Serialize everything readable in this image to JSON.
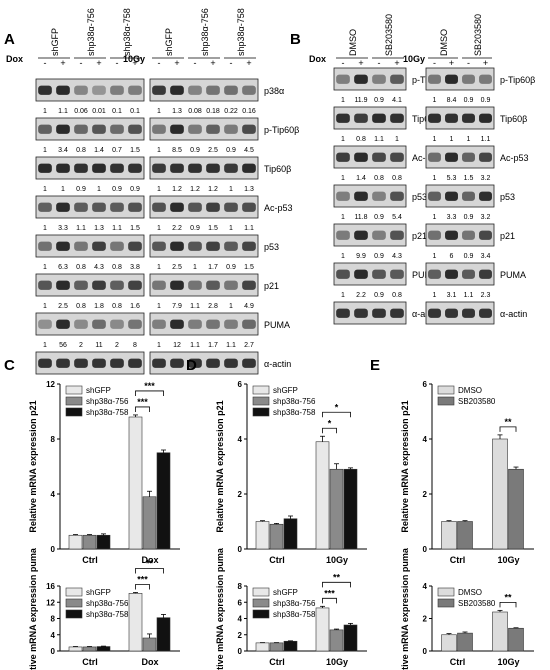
{
  "panelA": {
    "letter": "A",
    "groups": [
      "shGFP",
      "shp38α-756",
      "shp38α-758"
    ],
    "left": {
      "treat": "Dox",
      "signs": [
        "-",
        "+",
        "-",
        "+",
        "-",
        "+"
      ],
      "rows": [
        {
          "label": "p38α",
          "values": [
            "1",
            "1.1",
            "0.06",
            "0.01",
            "0.1",
            "0.1"
          ]
        },
        {
          "label": "p-Tip60β",
          "values": [
            "1",
            "3.4",
            "0.8",
            "1.4",
            "0.7",
            "1.5"
          ]
        },
        {
          "label": "Tip60β",
          "values": [
            "1",
            "1",
            "0.9",
            "1",
            "0.9",
            "0.9"
          ]
        },
        {
          "label": "Ac-p53",
          "values": [
            "1",
            "3.3",
            "1.1",
            "1.3",
            "1.1",
            "1.5"
          ]
        },
        {
          "label": "p53",
          "values": [
            "1",
            "6.3",
            "0.8",
            "4.3",
            "0.8",
            "3.8"
          ]
        },
        {
          "label": "p21",
          "values": [
            "1",
            "2.5",
            "0.8",
            "1.8",
            "0.8",
            "1.6"
          ]
        },
        {
          "label": "PUMA",
          "values": [
            "1",
            "56",
            "2",
            "11",
            "2",
            "8"
          ]
        },
        {
          "label": "α-actin",
          "values": []
        }
      ]
    },
    "right": {
      "treat": "10Gy",
      "signs": [
        "-",
        "+",
        "-",
        "+",
        "-",
        "+"
      ],
      "rows": [
        {
          "label": "p38α",
          "values": [
            "1",
            "1.3",
            "0.08",
            "0.18",
            "0.22",
            "0.16"
          ]
        },
        {
          "label": "p-Tip60β",
          "values": [
            "1",
            "8.5",
            "0.9",
            "2.5",
            "0.9",
            "4.5"
          ]
        },
        {
          "label": "Tip60β",
          "values": [
            "1",
            "1.2",
            "1.2",
            "1.2",
            "1",
            "1.3"
          ]
        },
        {
          "label": "Ac-p53",
          "values": [
            "1",
            "2.2",
            "0.9",
            "1.5",
            "1",
            "1.1"
          ]
        },
        {
          "label": "p53",
          "values": [
            "1",
            "2.5",
            "1",
            "1.7",
            "0.9",
            "1.5"
          ]
        },
        {
          "label": "p21",
          "values": [
            "1",
            "7.9",
            "1.1",
            "2.8",
            "1",
            "4.9"
          ]
        },
        {
          "label": "PUMA",
          "values": [
            "1",
            "12",
            "1.1",
            "1.7",
            "1.1",
            "2.7"
          ]
        },
        {
          "label": "α-actin",
          "values": []
        }
      ]
    }
  },
  "panelB": {
    "letter": "B",
    "groups": [
      "DMSO",
      "SB203580"
    ],
    "left": {
      "treat": "Dox",
      "signs": [
        "-",
        "+",
        "-",
        "+"
      ],
      "rows": [
        {
          "label": "p-Tip60β",
          "values": [
            "1",
            "11.9",
            "0.9",
            "4.1"
          ]
        },
        {
          "label": "Tip60β",
          "values": [
            "1",
            "0.8",
            "1.1",
            "1"
          ]
        },
        {
          "label": "Ac-p53",
          "values": [
            "1",
            "1.4",
            "0.8",
            "0.8"
          ]
        },
        {
          "label": "p53",
          "values": [
            "1",
            "11.8",
            "0.9",
            "5.4"
          ]
        },
        {
          "label": "p21",
          "values": [
            "1",
            "9.9",
            "0.9",
            "4.3"
          ]
        },
        {
          "label": "PUMA",
          "values": [
            "1",
            "2.2",
            "0.9",
            "0.8"
          ]
        },
        {
          "label": "α-actin",
          "values": []
        }
      ]
    },
    "right": {
      "treat": "10Gy",
      "signs": [
        "-",
        "+",
        "-",
        "+"
      ],
      "rows": [
        {
          "label": "p-Tip60β",
          "values": [
            "1",
            "8.4",
            "0.9",
            "0.9"
          ]
        },
        {
          "label": "Tip60β",
          "values": [
            "1",
            "1",
            "1",
            "1.1"
          ]
        },
        {
          "label": "Ac-p53",
          "values": [
            "1",
            "5.3",
            "1.5",
            "3.2"
          ]
        },
        {
          "label": "p53",
          "values": [
            "1",
            "3.3",
            "0.9",
            "3.2"
          ]
        },
        {
          "label": "p21",
          "values": [
            "1",
            "6",
            "0.9",
            "3.4"
          ]
        },
        {
          "label": "PUMA",
          "values": [
            "1",
            "3.1",
            "1.1",
            "2.3"
          ]
        },
        {
          "label": "α-actin",
          "values": []
        }
      ]
    }
  },
  "chart_data": [
    {
      "panel": "C",
      "type": "bar",
      "ylabel": "Relative mRNA expression p21",
      "ylim": [
        0,
        12
      ],
      "yticks": [
        0,
        4,
        8,
        12
      ],
      "categories": [
        "Ctrl",
        "Dox"
      ],
      "series": [
        {
          "name": "shGFP",
          "values": [
            1,
            9.6
          ],
          "errors": [
            0.05,
            0.15
          ]
        },
        {
          "name": "shp38α-756",
          "values": [
            1,
            3.8
          ],
          "errors": [
            0.05,
            0.4
          ]
        },
        {
          "name": "shp38α-758",
          "values": [
            1,
            7
          ],
          "errors": [
            0.1,
            0.2
          ]
        }
      ],
      "sig": [
        {
          "a": 0,
          "b": 1,
          "label": "***"
        },
        {
          "a": 0,
          "b": 2,
          "label": "***"
        }
      ]
    },
    {
      "panel": "C",
      "type": "bar",
      "ylabel": "Relative mRNA expression puma",
      "ylim": [
        0,
        16
      ],
      "yticks": [
        0,
        4,
        8,
        12,
        16
      ],
      "categories": [
        "Ctrl",
        "Dox"
      ],
      "series": [
        {
          "name": "shGFP",
          "values": [
            1,
            14.2
          ],
          "errors": [
            0.1,
            0.2
          ]
        },
        {
          "name": "shp38α-756",
          "values": [
            1,
            3.2
          ],
          "errors": [
            0.1,
            1.0
          ]
        },
        {
          "name": "shp38α-758",
          "values": [
            1.1,
            8.2
          ],
          "errors": [
            0.1,
            0.8
          ]
        }
      ],
      "sig": [
        {
          "a": 0,
          "b": 1,
          "label": "***"
        },
        {
          "a": 0,
          "b": 2,
          "label": "**"
        }
      ]
    },
    {
      "panel": "D",
      "type": "bar",
      "ylabel": "Relative mRNA expression p21",
      "ylim": [
        0,
        6
      ],
      "yticks": [
        0,
        2,
        4,
        6
      ],
      "categories": [
        "Ctrl",
        "10Gy"
      ],
      "series": [
        {
          "name": "shGFP",
          "values": [
            1,
            3.9
          ],
          "errors": [
            0.03,
            0.2
          ]
        },
        {
          "name": "shp38α-756",
          "values": [
            0.9,
            2.9
          ],
          "errors": [
            0.03,
            0.2
          ]
        },
        {
          "name": "shp38α-758",
          "values": [
            1.1,
            2.9
          ],
          "errors": [
            0.1,
            0.05
          ]
        }
      ],
      "sig": [
        {
          "a": 0,
          "b": 1,
          "label": "*"
        },
        {
          "a": 0,
          "b": 2,
          "label": "*"
        }
      ]
    },
    {
      "panel": "D",
      "type": "bar",
      "ylabel": "Relative mRNA expression puma",
      "ylim": [
        0,
        8
      ],
      "yticks": [
        0,
        2,
        4,
        6,
        8
      ],
      "categories": [
        "Ctrl",
        "10Gy"
      ],
      "series": [
        {
          "name": "shGFP",
          "values": [
            1,
            5.3
          ],
          "errors": [
            0.03,
            0.2
          ]
        },
        {
          "name": "shp38α-756",
          "values": [
            1,
            2.6
          ],
          "errors": [
            0.03,
            0.1
          ]
        },
        {
          "name": "shp38α-758",
          "values": [
            1.2,
            3.2
          ],
          "errors": [
            0.05,
            0.2
          ]
        }
      ],
      "sig": [
        {
          "a": 0,
          "b": 1,
          "label": "***"
        },
        {
          "a": 0,
          "b": 2,
          "label": "**"
        }
      ]
    },
    {
      "panel": "E",
      "type": "bar",
      "ylabel": "Relative mRNA expression p21",
      "ylim": [
        0,
        6
      ],
      "yticks": [
        0,
        2,
        4,
        6
      ],
      "categories": [
        "Ctrl",
        "10Gy"
      ],
      "series": [
        {
          "name": "DMSO",
          "values": [
            1,
            4
          ],
          "errors": [
            0.03,
            0.15
          ]
        },
        {
          "name": "SB203580",
          "values": [
            1,
            2.9
          ],
          "errors": [
            0.03,
            0.08
          ]
        }
      ],
      "sig": [
        {
          "a": 0,
          "b": 1,
          "label": "**"
        }
      ]
    },
    {
      "panel": "E",
      "type": "bar",
      "ylabel": "Relative mRNA expression puma",
      "ylim": [
        0,
        4
      ],
      "yticks": [
        0,
        2,
        4
      ],
      "categories": [
        "Ctrl",
        "10Gy"
      ],
      "series": [
        {
          "name": "DMSO",
          "values": [
            1,
            2.4
          ],
          "errors": [
            0.07,
            0.1
          ]
        },
        {
          "name": "SB203580",
          "values": [
            1.1,
            1.4
          ],
          "errors": [
            0.07,
            0.03
          ]
        }
      ],
      "sig": [
        {
          "a": 0,
          "b": 1,
          "label": "**"
        }
      ]
    }
  ],
  "chart_letters": [
    "C",
    "D",
    "E"
  ],
  "colors": {
    "series1": "#e8e8e8",
    "series2": "#8a8a8a",
    "series3": "#111111",
    "series1_E": "#dcdcdc",
    "series2_E": "#7a7a7a"
  }
}
